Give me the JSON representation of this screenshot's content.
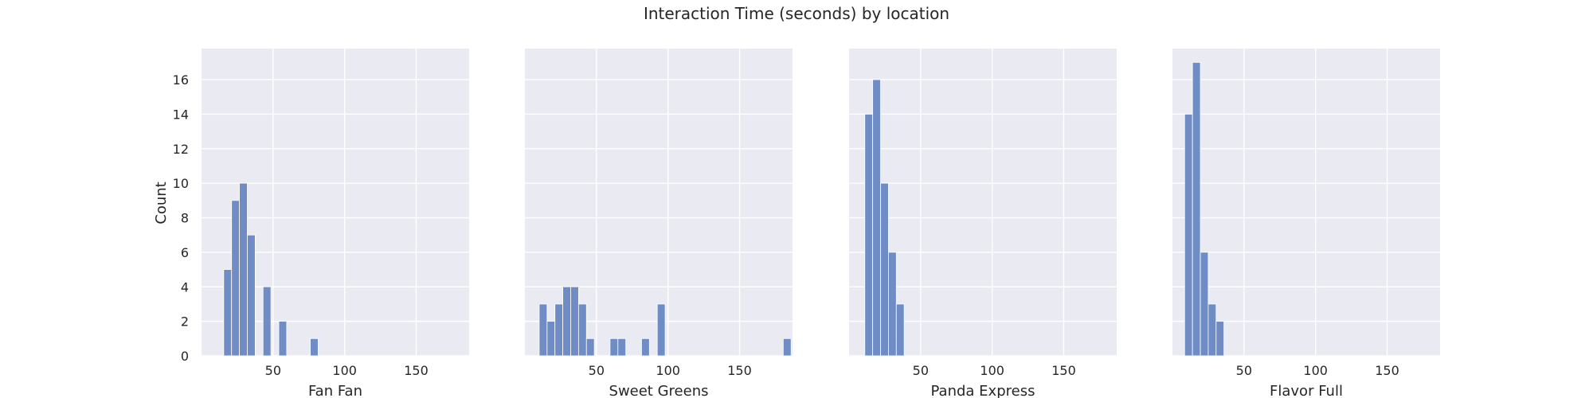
{
  "chart_data": {
    "type": "bar",
    "title": "Interaction Time (seconds) by location",
    "ylabel": "Count",
    "grid": true,
    "xlim": [
      0,
      187
    ],
    "ylim": [
      0,
      17.8
    ],
    "xticks": [
      50,
      100,
      150
    ],
    "yticks": [
      0,
      2,
      4,
      6,
      8,
      10,
      12,
      14,
      16
    ],
    "bin_width": 5.5,
    "bar_color": "#6F8DC4",
    "background_color": "#EAEAF2",
    "panels": [
      {
        "xlabel": "Fan Fan",
        "bins": [
          {
            "x": 15.5,
            "count": 5
          },
          {
            "x": 21.0,
            "count": 9
          },
          {
            "x": 26.5,
            "count": 10
          },
          {
            "x": 32.0,
            "count": 7
          },
          {
            "x": 43.0,
            "count": 4
          },
          {
            "x": 54.0,
            "count": 2
          },
          {
            "x": 76.0,
            "count": 1
          }
        ]
      },
      {
        "xlabel": "Sweet Greens",
        "bins": [
          {
            "x": 10.0,
            "count": 3
          },
          {
            "x": 15.5,
            "count": 2
          },
          {
            "x": 21.0,
            "count": 3
          },
          {
            "x": 26.5,
            "count": 4
          },
          {
            "x": 32.0,
            "count": 4
          },
          {
            "x": 37.5,
            "count": 3
          },
          {
            "x": 43.0,
            "count": 1
          },
          {
            "x": 59.5,
            "count": 1
          },
          {
            "x": 65.0,
            "count": 1
          },
          {
            "x": 81.5,
            "count": 1
          },
          {
            "x": 92.5,
            "count": 3
          },
          {
            "x": 180.5,
            "count": 1
          }
        ]
      },
      {
        "xlabel": "Panda Express",
        "bins": [
          {
            "x": 11.0,
            "count": 14
          },
          {
            "x": 16.5,
            "count": 16
          },
          {
            "x": 22.0,
            "count": 10
          },
          {
            "x": 27.5,
            "count": 6
          },
          {
            "x": 33.0,
            "count": 3
          }
        ]
      },
      {
        "xlabel": "Flavor Full",
        "bins": [
          {
            "x": 8.5,
            "count": 14
          },
          {
            "x": 14.0,
            "count": 17
          },
          {
            "x": 19.5,
            "count": 6
          },
          {
            "x": 25.0,
            "count": 3
          },
          {
            "x": 30.5,
            "count": 2
          }
        ]
      }
    ]
  }
}
